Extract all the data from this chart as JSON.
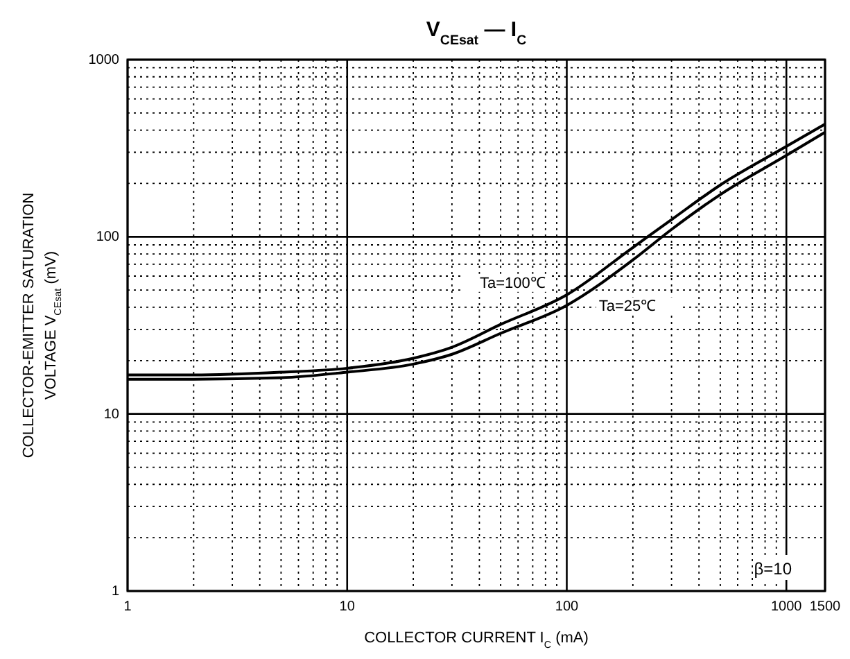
{
  "chart_data": {
    "type": "line",
    "title": "V$_{CEsat}$ — I$_{C}$",
    "xlabel": "COLLECTOR CURRENT   I$_{C}$   (mA)",
    "ylabel": "COLLECTOR-EMITTER SATURATION\nVOLTAGE   V$_{CEsat}$   (mV)",
    "log": "xy",
    "grid": true,
    "marker": "none",
    "line_style": "solid",
    "xlim": [
      1,
      1500
    ],
    "ylim": [
      1,
      1000
    ],
    "xticks": [
      1,
      {
        "value": 2,
        "label": null
      },
      {
        "value": 3,
        "label": null
      },
      {
        "value": 4,
        "label": null
      },
      {
        "value": 5,
        "label": null
      },
      {
        "value": 6,
        "label": null
      },
      {
        "value": 7,
        "label": null
      },
      {
        "value": 8,
        "label": null
      },
      {
        "value": 9,
        "label": null
      },
      10,
      {
        "value": 20,
        "label": null
      },
      {
        "value": 30,
        "label": null
      },
      {
        "value": 40,
        "label": null
      },
      {
        "value": 50,
        "label": null
      },
      {
        "value": 60,
        "label": null
      },
      {
        "value": 70,
        "label": null
      },
      {
        "value": 80,
        "label": null
      },
      {
        "value": 90,
        "label": null
      },
      100,
      {
        "value": 200,
        "label": null
      },
      {
        "value": 300,
        "label": null
      },
      {
        "value": 400,
        "label": null
      },
      {
        "value": 500,
        "label": null
      },
      {
        "value": 600,
        "label": null
      },
      {
        "value": 700,
        "label": null
      },
      {
        "value": 800,
        "label": null
      },
      {
        "value": 900,
        "label": null
      },
      1000,
      1500
    ],
    "yticks": [
      1,
      {
        "value": 2,
        "label": null
      },
      {
        "value": 3,
        "label": null
      },
      {
        "value": 4,
        "label": null
      },
      {
        "value": 5,
        "label": null
      },
      {
        "value": 6,
        "label": null
      },
      {
        "value": 7,
        "label": null
      },
      {
        "value": 8,
        "label": null
      },
      {
        "value": 9,
        "label": null
      },
      10,
      {
        "value": 20,
        "label": null
      },
      {
        "value": 30,
        "label": null
      },
      {
        "value": 40,
        "label": null
      },
      {
        "value": 50,
        "label": null
      },
      {
        "value": 60,
        "label": null
      },
      {
        "value": 70,
        "label": null
      },
      {
        "value": 80,
        "label": null
      },
      {
        "value": 90,
        "label": null
      },
      100,
      {
        "value": 200,
        "label": null
      },
      {
        "value": 300,
        "label": null
      },
      {
        "value": 400,
        "label": null
      },
      {
        "value": 500,
        "label": null
      },
      {
        "value": 600,
        "label": null
      },
      {
        "value": 700,
        "label": null
      },
      {
        "value": 800,
        "label": null
      },
      {
        "value": 900,
        "label": null
      },
      1000
    ],
    "x": [
      1,
      2,
      5,
      10,
      20,
      30,
      50,
      100,
      200,
      300,
      500,
      1000,
      1500
    ],
    "series": [
      {
        "name": "Ta=100℃",
        "color": "#000000",
        "values": [
          16.6,
          16.6,
          17.2,
          18.1,
          20.6,
          23.8,
          32,
          47,
          87,
          125,
          196,
          324,
          433
        ]
      },
      {
        "name": "Ta=25℃",
        "color": "#000000",
        "values": [
          15.7,
          15.7,
          16,
          17.2,
          19.1,
          21.7,
          28.5,
          41,
          74,
          110,
          173,
          288,
          389
        ]
      }
    ],
    "annotations": [
      "β=10"
    ]
  }
}
